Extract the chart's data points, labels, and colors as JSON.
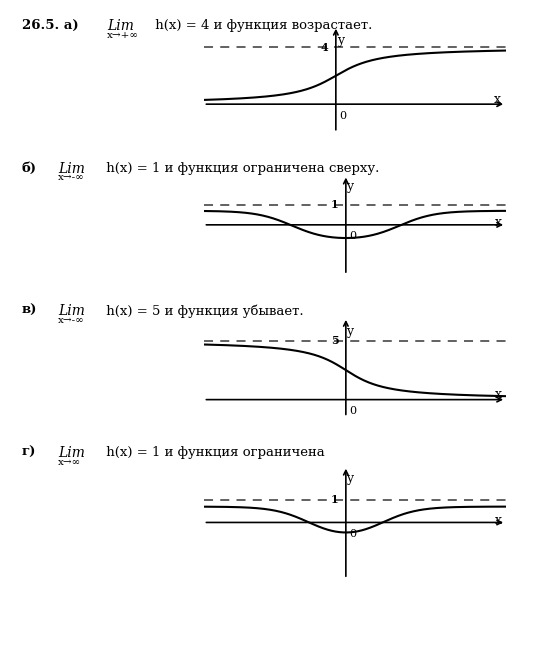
{
  "bg_color": "#ffffff",
  "curve_color": "#000000",
  "dashed_color": "#555555",
  "axis_color": "#000000",
  "panels": [
    {
      "label": "26.5. а)",
      "lim_text": "Lim",
      "sub_text": "x→+∞",
      "desc": "h(x) = 4 и функция возрастает.",
      "asym_val": 4,
      "asym_label": "4",
      "curve_type": "arctan_up",
      "xlim": [
        -3.5,
        4.5
      ],
      "ylim": [
        -2.0,
        5.5
      ]
    },
    {
      "label": "б)",
      "lim_text": "Lim",
      "sub_text": "x→-∞",
      "desc": "h(x) = 1 и функция ограничена сверху.",
      "asym_val": 1,
      "asym_label": "1",
      "curve_type": "wave_b",
      "xlim": [
        -4.0,
        4.5
      ],
      "ylim": [
        -2.5,
        2.5
      ]
    },
    {
      "label": "в)",
      "lim_text": "Lim",
      "sub_text": "x→-∞",
      "desc": "h(x) = 5 и функция убывает.",
      "asym_val": 5,
      "asym_label": "5",
      "curve_type": "arctan_down",
      "xlim": [
        -4.0,
        4.5
      ],
      "ylim": [
        -1.5,
        7.0
      ]
    },
    {
      "label": "г)",
      "lim_text": "Lim",
      "sub_text": "x→∞",
      "desc": "h(x) = 1 и функция ограничена",
      "asym_val": 1,
      "asym_label": "1",
      "curve_type": "wave_d",
      "xlim": [
        -4.0,
        4.5
      ],
      "ylim": [
        -2.5,
        2.5
      ]
    }
  ]
}
